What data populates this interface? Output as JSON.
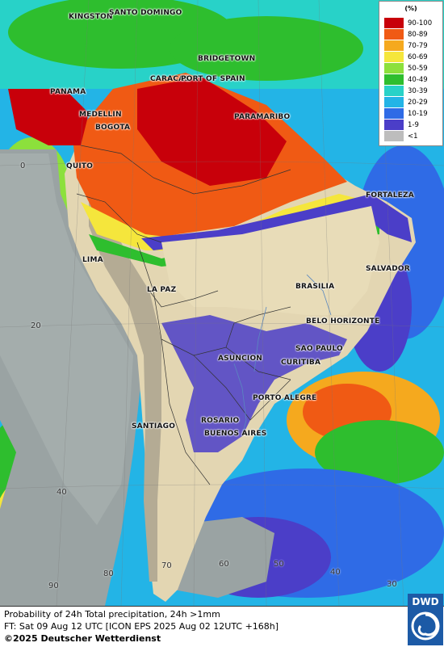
{
  "legend": {
    "unit": "(%)",
    "items": [
      {
        "label": "90-100",
        "color": "#c8000a"
      },
      {
        "label": "80-89",
        "color": "#f05a14"
      },
      {
        "label": "70-79",
        "color": "#f5a91e"
      },
      {
        "label": "60-69",
        "color": "#f5e63c"
      },
      {
        "label": "50-59",
        "color": "#8ce03c"
      },
      {
        "label": "40-49",
        "color": "#2ebe2e"
      },
      {
        "label": "30-39",
        "color": "#28d2c8"
      },
      {
        "label": "20-29",
        "color": "#23b4e6"
      },
      {
        "label": "10-19",
        "color": "#2f6be6"
      },
      {
        "label": "1-9",
        "color": "#4b3ec8"
      },
      {
        "label": "<1",
        "color": "#bdbdbd"
      }
    ]
  },
  "cities": {
    "kingston": "KINGSTON",
    "santo_domingo": "SANTO DOMINGO",
    "bridgetown": "BRIDGETOWN",
    "caracas": "CARACAS",
    "port_of_spain": "PORT OF SPAIN",
    "panama": "PANAMA",
    "paramaribo": "PARAMARIBO",
    "medellin": "MEDELLIN",
    "bogota": "BOGOTA",
    "quito": "QUITO",
    "fortaleza": "FORTALEZA",
    "lima": "LIMA",
    "salvador": "SALVADOR",
    "la_paz": "LA PAZ",
    "brasilia": "BRASILIA",
    "belo_horizonte": "BELO HORIZONTE",
    "sao_paulo": "SAO PAULO",
    "asuncion": "ASUNCION",
    "curitiba": "CURITIBA",
    "porto_alegre": "PORTO ALEGRE",
    "santiago": "SANTIAGO",
    "rosario": "ROSARIO",
    "buenos_aires": "BUENOS AIRES"
  },
  "grid_labels": {
    "lat_0": "0",
    "lat_20": "20",
    "lat_40": "40",
    "lon_90": "90",
    "lon_80": "80",
    "lon_70": "70",
    "lon_60": "60",
    "lon_50": "50",
    "lon_40": "40",
    "lon_30": "30"
  },
  "footer": {
    "line1": "Probability of 24h Total precipitation, 24h >1mm",
    "line2": "FT: Sat 09 Aug 12 UTC [ICON EPS 2025 Aug 02 12UTC +168h]",
    "line3": "©2025 Deutscher Wetterdienst"
  },
  "logo": {
    "text": "DWD"
  }
}
